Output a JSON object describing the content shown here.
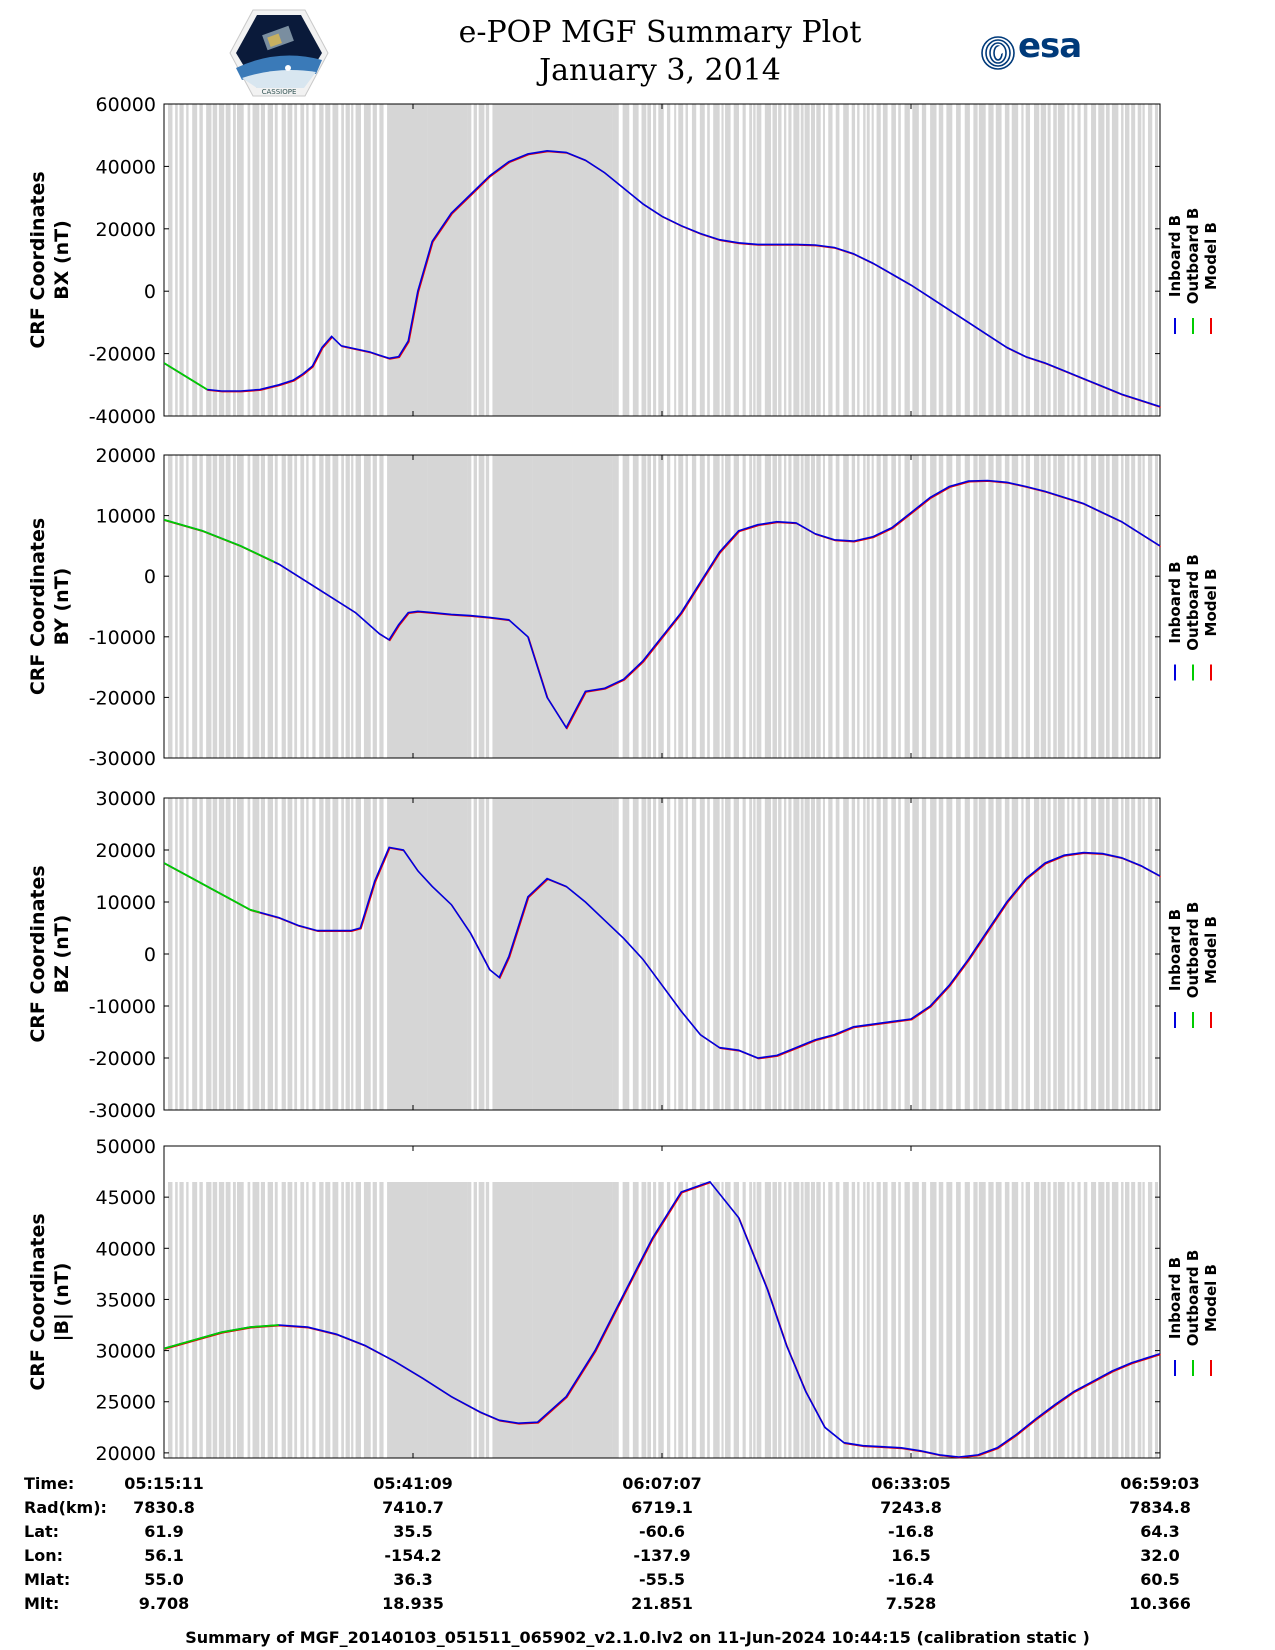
{
  "header": {
    "title_line1": "e-POP MGF Summary Plot",
    "title_line2": "January 3, 2014",
    "left_logo_text": "CASSIOPE",
    "right_logo_text": "esa"
  },
  "legend": {
    "entries": [
      {
        "name": "Inboard B",
        "color": "#0000dd"
      },
      {
        "name": "Outboard B",
        "color": "#00cc00"
      },
      {
        "name": "Model B",
        "color": "#ee0000"
      }
    ]
  },
  "chart_data": [
    {
      "type": "line",
      "ylabel_line1": "CRF Coordinates",
      "ylabel_line2": "BX (nT)",
      "ylim": [
        -40000,
        60000
      ],
      "yticks": [
        -40000,
        -20000,
        0,
        20000,
        40000,
        60000
      ],
      "outboard_end_minute": 4.5,
      "series": [
        {
          "name": "Inboard B",
          "x": [
            0,
            4.5,
            6,
            8,
            10,
            12,
            13.5,
            14.5,
            15.5,
            16.5,
            17.5,
            18.5,
            20,
            21.5,
            22.5,
            23.5,
            24.5,
            25.5,
            26.5,
            28,
            30,
            32,
            34,
            36,
            38,
            40,
            42,
            44,
            46,
            48,
            50,
            52,
            54,
            56,
            58,
            60,
            62,
            64,
            66,
            68,
            70,
            72,
            74,
            76,
            78,
            80,
            82,
            84,
            86,
            88,
            90,
            92,
            94,
            96,
            98,
            100,
            102,
            104
          ],
          "y": [
            -23000,
            -31500,
            -32000,
            -32000,
            -31500,
            -30000,
            -28500,
            -26500,
            -24000,
            -18000,
            -14500,
            -17500,
            -18500,
            -19500,
            -20500,
            -21500,
            -21000,
            -16000,
            0,
            16000,
            25000,
            31000,
            37000,
            41500,
            44000,
            45000,
            44500,
            42000,
            38000,
            33000,
            28000,
            24000,
            21000,
            18500,
            16500,
            15500,
            15000,
            15000,
            15000,
            14800,
            14000,
            12000,
            9000,
            5500,
            2000,
            -2000,
            -6000,
            -10000,
            -14000,
            -18000,
            -21000,
            -23000,
            -25500,
            -28000,
            -30500,
            -33000,
            -35000,
            -37000
          ]
        }
      ]
    },
    {
      "type": "line",
      "ylabel_line1": "CRF Coordinates",
      "ylabel_line2": "BY (nT)",
      "ylim": [
        -30000,
        20000
      ],
      "yticks": [
        -30000,
        -20000,
        -10000,
        0,
        10000,
        20000
      ],
      "outboard_end_minute": 11.5,
      "series": [
        {
          "name": "Inboard B",
          "x": [
            0,
            4,
            8,
            12,
            16,
            20,
            22.5,
            23.5,
            24.5,
            25.5,
            26.5,
            28,
            30,
            32,
            34,
            36,
            38,
            40,
            42,
            44,
            46,
            48,
            50,
            52,
            54,
            56,
            58,
            60,
            62,
            64,
            66,
            68,
            70,
            72,
            74,
            76,
            78,
            80,
            82,
            84,
            86,
            88,
            90,
            92,
            94,
            96,
            98,
            100,
            102,
            104
          ],
          "y": [
            9300,
            7500,
            5000,
            2000,
            -2000,
            -6000,
            -9500,
            -10500,
            -8000,
            -6000,
            -5800,
            -6000,
            -6300,
            -6500,
            -6800,
            -7200,
            -10000,
            -20000,
            -25000,
            -19000,
            -18500,
            -17000,
            -14000,
            -10000,
            -6000,
            -1000,
            4000,
            7500,
            8500,
            9000,
            8800,
            7000,
            6000,
            5800,
            6500,
            8000,
            10500,
            13000,
            14800,
            15700,
            15800,
            15500,
            14800,
            14000,
            13000,
            12000,
            10500,
            9000,
            7000,
            5000
          ]
        }
      ]
    },
    {
      "type": "line",
      "ylabel_line1": "CRF Coordinates",
      "ylabel_line2": "BZ (nT)",
      "ylim": [
        -30000,
        30000
      ],
      "yticks": [
        -30000,
        -20000,
        -10000,
        0,
        10000,
        20000,
        30000
      ],
      "outboard_end_minute": 10,
      "series": [
        {
          "name": "Inboard B",
          "x": [
            0,
            3,
            6,
            9,
            12,
            14,
            16,
            18,
            19.5,
            20.5,
            22,
            23.5,
            25,
            26.5,
            28,
            30,
            32,
            34,
            35,
            36,
            38,
            40,
            42,
            44,
            46,
            48,
            50,
            52,
            54,
            56,
            58,
            60,
            62,
            64,
            66,
            68,
            70,
            72,
            74,
            76,
            78,
            80,
            82,
            84,
            86,
            88,
            90,
            92,
            94,
            96,
            98,
            100,
            102,
            104
          ],
          "y": [
            17500,
            14500,
            11500,
            8500,
            7000,
            5500,
            4500,
            4500,
            4500,
            5000,
            14000,
            20500,
            20000,
            16000,
            13000,
            9500,
            4000,
            -3000,
            -4500,
            -500,
            11000,
            14500,
            13000,
            10000,
            6500,
            3000,
            -1000,
            -6000,
            -11000,
            -15500,
            -18000,
            -18500,
            -20000,
            -19500,
            -18000,
            -16500,
            -15500,
            -14000,
            -13500,
            -13000,
            -12500,
            -10000,
            -6000,
            -1000,
            4500,
            10000,
            14500,
            17500,
            19000,
            19500,
            19300,
            18500,
            17000,
            15000
          ]
        }
      ]
    },
    {
      "type": "line",
      "ylabel_line1": "CRF Coordinates",
      "ylabel_line2": "|B| (nT)",
      "ylim": [
        19500,
        50000
      ],
      "yticks": [
        20000,
        25000,
        30000,
        35000,
        40000,
        45000,
        50000
      ],
      "outboard_end_minute": 12,
      "series": [
        {
          "name": "Inboard B",
          "x": [
            0,
            3,
            6,
            9,
            12,
            15,
            18,
            21,
            24,
            27,
            30,
            33,
            35,
            37,
            39,
            42,
            45,
            48,
            51,
            54,
            57,
            60,
            63,
            65,
            67,
            69,
            71,
            73,
            75,
            77,
            79,
            81,
            83,
            85,
            87,
            89,
            91,
            93,
            95,
            97,
            99,
            101,
            104
          ],
          "y": [
            30200,
            31000,
            31800,
            32300,
            32500,
            32300,
            31600,
            30500,
            29000,
            27300,
            25500,
            24000,
            23200,
            22900,
            23000,
            25500,
            30000,
            35500,
            41000,
            45500,
            46500,
            43000,
            36000,
            30500,
            26000,
            22500,
            21000,
            20700,
            20600,
            20500,
            20200,
            19800,
            19600,
            19800,
            20500,
            21800,
            23300,
            24700,
            26000,
            27000,
            28000,
            28800,
            29700
          ]
        }
      ]
    }
  ],
  "x_axis": {
    "time_labels": [
      "05:15:11",
      "05:41:09",
      "06:07:07",
      "06:33:05",
      "06:59:03"
    ],
    "tick_minutes": [
      0,
      26,
      52,
      78,
      104
    ]
  },
  "ephemeris": {
    "rows": [
      {
        "label": "Time:",
        "values": [
          "05:15:11",
          "05:41:09",
          "06:07:07",
          "06:33:05",
          "06:59:03"
        ]
      },
      {
        "label": "Rad(km):",
        "values": [
          "7830.8",
          "7410.7",
          "6719.1",
          "7243.8",
          "7834.8"
        ]
      },
      {
        "label": "Lat:",
        "values": [
          "61.9",
          "35.5",
          "-60.6",
          "-16.8",
          "64.3"
        ]
      },
      {
        "label": "Lon:",
        "values": [
          "56.1",
          "-154.2",
          "-137.9",
          "16.5",
          "32.0"
        ]
      },
      {
        "label": "Mlat:",
        "values": [
          "55.0",
          "36.3",
          "-55.5",
          "-16.4",
          "60.5"
        ]
      },
      {
        "label": "Mlt:",
        "values": [
          "9.708",
          "18.935",
          "21.851",
          "7.528",
          "10.366"
        ]
      }
    ]
  },
  "footer": "Summary of MGF_20140103_051511_065902_v2.1.0.lv2 on 11-Jun-2024 10:44:15 (calibration static )"
}
